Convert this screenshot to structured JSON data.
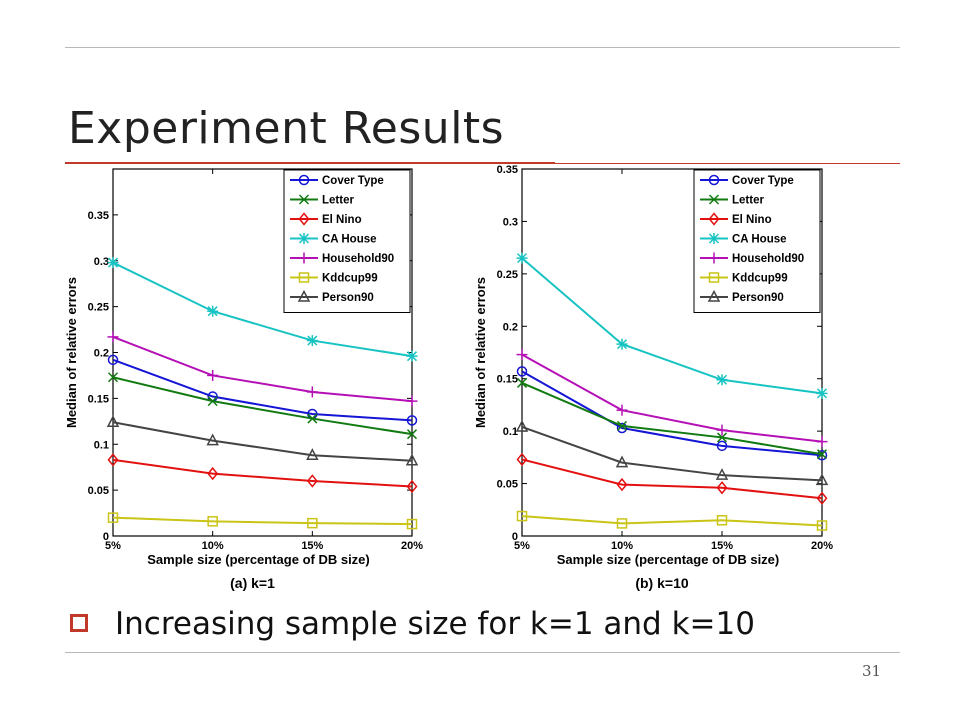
{
  "slide": {
    "title": "Experiment Results",
    "bullet_text": "Increasing sample size for k=1 and k=10",
    "page_number": "31"
  },
  "chart_data": [
    {
      "type": "line",
      "caption": "(a) k=1",
      "xlabel": "Sample size (percentage  of DB size)",
      "ylabel": "Median of relative errors",
      "categories": [
        "5%",
        "10%",
        "15%",
        "20%"
      ],
      "ylim": [
        0,
        0.4
      ],
      "yticks": [
        0,
        0.05,
        0.1,
        0.15,
        0.2,
        0.25,
        0.3,
        0.35
      ],
      "ytick_labels": [
        "0",
        "0.05",
        "0.1",
        "0.15",
        "0.2",
        "0.25",
        "0.3",
        "0.35"
      ],
      "legend_position": "top-right",
      "series": [
        {
          "name": "Cover Type",
          "color": "#1515d6",
          "marker": "circle",
          "values": [
            0.192,
            0.152,
            0.133,
            0.126
          ]
        },
        {
          "name": "Letter",
          "color": "#117a11",
          "marker": "x",
          "values": [
            0.173,
            0.147,
            0.128,
            0.111
          ]
        },
        {
          "name": "El Nino",
          "color": "#e31010",
          "marker": "diamond",
          "values": [
            0.083,
            0.068,
            0.06,
            0.054
          ]
        },
        {
          "name": "CA House",
          "color": "#17c3c3",
          "marker": "star",
          "values": [
            0.298,
            0.245,
            0.213,
            0.196
          ]
        },
        {
          "name": "Household90",
          "color": "#b510b5",
          "marker": "plus",
          "values": [
            0.217,
            0.175,
            0.157,
            0.147
          ]
        },
        {
          "name": "Kddcup99",
          "color": "#c9c415",
          "marker": "square",
          "values": [
            0.02,
            0.016,
            0.014,
            0.013
          ]
        },
        {
          "name": "Person90",
          "color": "#444444",
          "marker": "triangle",
          "values": [
            0.124,
            0.104,
            0.088,
            0.082
          ]
        }
      ]
    },
    {
      "type": "line",
      "caption": "(b) k=10",
      "xlabel": "Sample size (percentage of DB size)",
      "ylabel": "Median of relative errors",
      "categories": [
        "5%",
        "10%",
        "15%",
        "20%"
      ],
      "ylim": [
        0,
        0.35
      ],
      "yticks": [
        0,
        0.05,
        0.1,
        0.15,
        0.2,
        0.25,
        0.3,
        0.35
      ],
      "ytick_labels": [
        "0",
        "0.05",
        "0.1",
        "0.15",
        "0.2",
        "0.25",
        "0.3",
        "0.35"
      ],
      "legend_position": "top-right",
      "series": [
        {
          "name": "Cover Type",
          "color": "#1515d6",
          "marker": "circle",
          "values": [
            0.157,
            0.103,
            0.086,
            0.077
          ]
        },
        {
          "name": "Letter",
          "color": "#117a11",
          "marker": "x",
          "values": [
            0.146,
            0.105,
            0.094,
            0.078
          ]
        },
        {
          "name": "El Nino",
          "color": "#e31010",
          "marker": "diamond",
          "values": [
            0.073,
            0.049,
            0.046,
            0.036
          ]
        },
        {
          "name": "CA House",
          "color": "#17c3c3",
          "marker": "star",
          "values": [
            0.265,
            0.183,
            0.149,
            0.136
          ]
        },
        {
          "name": "Household90",
          "color": "#b510b5",
          "marker": "plus",
          "values": [
            0.173,
            0.12,
            0.101,
            0.09
          ]
        },
        {
          "name": "Kddcup99",
          "color": "#c9c415",
          "marker": "square",
          "values": [
            0.019,
            0.012,
            0.015,
            0.01
          ]
        },
        {
          "name": "Person90",
          "color": "#444444",
          "marker": "triangle",
          "values": [
            0.104,
            0.07,
            0.058,
            0.053
          ]
        }
      ]
    }
  ]
}
